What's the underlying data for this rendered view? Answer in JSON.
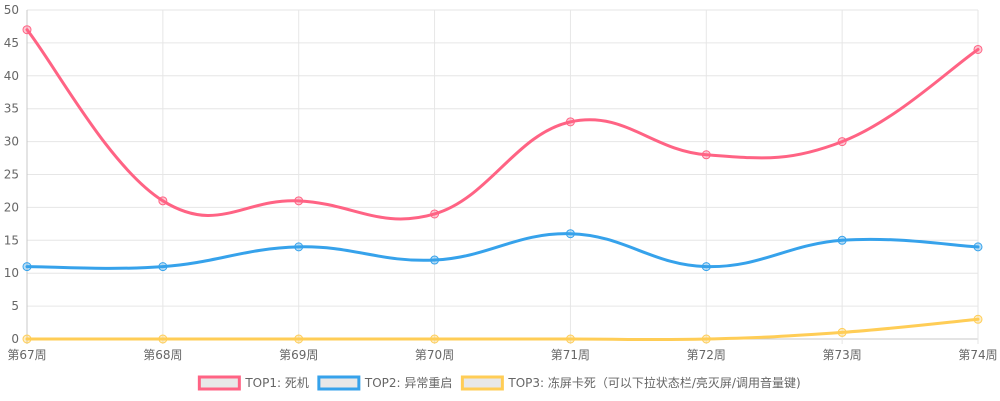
{
  "chart_data": {
    "type": "line",
    "x": [
      "第67周",
      "第68周",
      "第69周",
      "第70周",
      "第71周",
      "第72周",
      "第73周",
      "第74周"
    ],
    "ylim": [
      0,
      50
    ],
    "yticks": [
      0,
      5,
      10,
      15,
      20,
      25,
      30,
      35,
      40,
      45,
      50
    ],
    "grid": true,
    "legend_position": "bottom",
    "series": [
      {
        "name": "TOP1: 死机",
        "color": "#ff6384",
        "values": [
          47,
          21,
          21,
          19,
          33,
          28,
          30,
          44
        ]
      },
      {
        "name": "TOP2: 异常重启",
        "color": "#36a2eb",
        "values": [
          11,
          11,
          14,
          12,
          16,
          11,
          15,
          14
        ]
      },
      {
        "name": "TOP3: 冻屏卡死（可以下拉状态栏/亮灭屏/调用音量键)",
        "color": "#ffcd56",
        "values": [
          0,
          0,
          0,
          0,
          0,
          0,
          1,
          3
        ]
      }
    ]
  }
}
